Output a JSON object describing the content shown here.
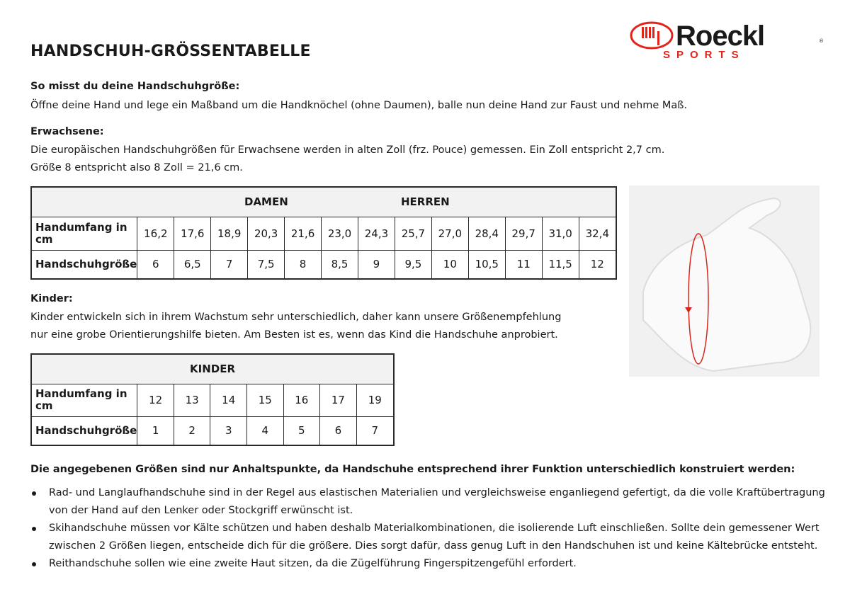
{
  "title": "HANDSCHUH-GRÖSSENTABELLE",
  "logo": {
    "brand": "Roeckl",
    "sub": "SPORTS",
    "color": "#e2231a"
  },
  "measure": {
    "heading": "So misst du deine Handschuhgröße:",
    "text": "Öffne deine Hand und lege ein Maßband um die Handknöchel (ohne Daumen), balle nun deine Hand zur Faust und nehme Maß."
  },
  "adults": {
    "heading": "Erwachsene:",
    "line1": "Die europäischen Handschuhgrößen für Erwachsene werden in alten Zoll (frz. Pouce) gemessen. Ein Zoll entspricht 2,7 cm.",
    "line2": "Größe 8 entspricht also 8 Zoll = 21,6 cm."
  },
  "adult_table": {
    "header_damen": "DAMEN",
    "header_herren": "HERREN",
    "row1_label": "Handumfang in cm",
    "row2_label": "Handschuhgröße",
    "circumference": [
      "16,2",
      "17,6",
      "18,9",
      "20,3",
      "21,6",
      "23,0",
      "24,3",
      "25,7",
      "27,0",
      "28,4",
      "29,7",
      "31,0",
      "32,4"
    ],
    "sizes": [
      "6",
      "6,5",
      "7",
      "7,5",
      "8",
      "8,5",
      "9",
      "9,5",
      "10",
      "10,5",
      "11",
      "11,5",
      "12"
    ]
  },
  "kids": {
    "heading": "Kinder:",
    "line1": "Kinder entwickeln sich in ihrem Wachstum sehr unterschiedlich, daher kann unsere Größenempfehlung",
    "line2": "nur eine grobe Orientierungshilfe bieten. Am Besten ist es, wenn das Kind die Handschuhe anprobiert."
  },
  "kids_table": {
    "header": "KINDER",
    "row1_label": "Handumfang in cm",
    "row2_label": "Handschuhgröße",
    "circumference": [
      "12",
      "13",
      "14",
      "15",
      "16",
      "17",
      "19"
    ],
    "sizes": [
      "1",
      "2",
      "3",
      "4",
      "5",
      "6",
      "7"
    ]
  },
  "notes": {
    "heading": "Die angegebenen Größen sind nur Anhaltspunkte, da Handschuhe entsprechend ihrer Funktion unterschiedlich konstruiert werden:",
    "bullets": [
      "Rad- und Langlaufhandschuhe sind in der Regel aus elastischen Materialien und vergleichsweise enganliegend gefertigt, da die volle Kraftübertragung von der Hand auf den Lenker oder Stockgriff erwünscht ist.",
      "Skihandschuhe müssen vor Kälte schützen und haben deshalb Materialkombinationen, die isolierende Luft einschließen. Sollte dein gemessener Wert zwischen 2 Größen liegen, entscheide dich für die größere. Dies sorgt dafür, dass genug Luft in den Handschuhen ist und keine Kältebrücke entsteht.",
      "Reithandschuhe sollen wie eine zweite Haut sitzen, da die Zügelführung Fingerspitzengefühl erfordert."
    ]
  }
}
